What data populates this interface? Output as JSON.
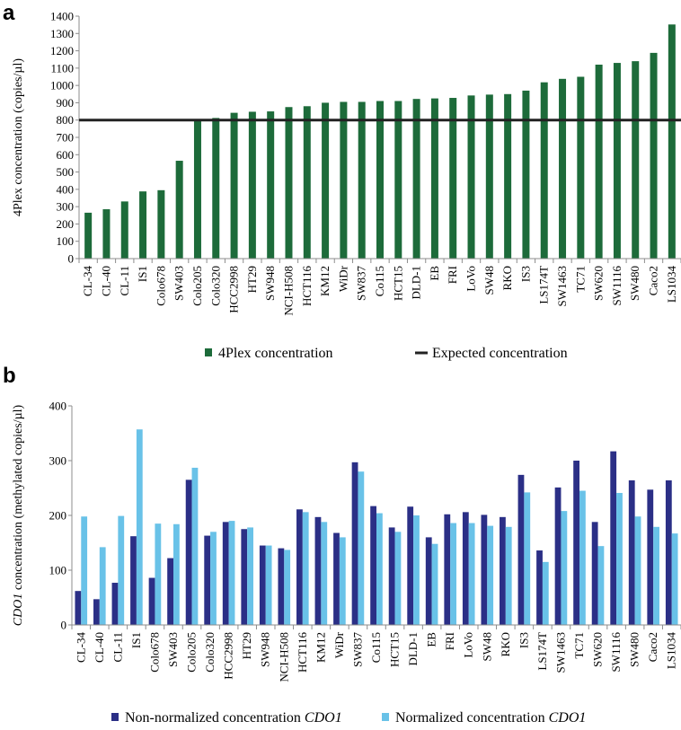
{
  "chart_data": [
    {
      "panel": "a",
      "type": "bar",
      "ylabel": "4Plex concentration (copies/µl)",
      "ylim": [
        0,
        1400
      ],
      "yticks": [
        0,
        100,
        200,
        300,
        400,
        500,
        600,
        700,
        800,
        900,
        1000,
        1100,
        1200,
        1300,
        1400
      ],
      "grid": false,
      "legend_position": "bottom",
      "categories": [
        "CL-34",
        "CL-40",
        "CL-11",
        "IS1",
        "Colo678",
        "SW403",
        "Colo205",
        "Colo320",
        "HCC2998",
        "HT29",
        "SW948",
        "NCI-H508",
        "HCT116",
        "KM12",
        "WiDr",
        "SW837",
        "Co115",
        "HCT15",
        "DLD-1",
        "EB",
        "FRI",
        "LoVo",
        "SW48",
        "RKO",
        "IS3",
        "LS174T",
        "SW1463",
        "TC71",
        "SW620",
        "SW1116",
        "SW480",
        "Caco2",
        "LS1034"
      ],
      "series": [
        {
          "name": "4Plex concentration",
          "color": "#1d6b3a",
          "values": [
            265,
            285,
            330,
            388,
            395,
            565,
            800,
            812,
            842,
            848,
            850,
            875,
            880,
            900,
            905,
            905,
            910,
            910,
            922,
            925,
            928,
            942,
            947,
            950,
            970,
            1018,
            1038,
            1050,
            1120,
            1130,
            1140,
            1188,
            1352
          ]
        }
      ],
      "reference_line": {
        "name": "Expected concentration",
        "value": 800,
        "color": "#222222"
      }
    },
    {
      "panel": "b",
      "type": "bar",
      "ylabel_parts": [
        {
          "text": "CDO1",
          "italic": true
        },
        {
          "text": " concentration (methylated copies/µl)",
          "italic": false
        }
      ],
      "ylim": [
        0,
        400
      ],
      "yticks": [
        0,
        100,
        200,
        300,
        400
      ],
      "grid": false,
      "legend_position": "bottom",
      "categories": [
        "CL-34",
        "CL-40",
        "CL-11",
        "IS1",
        "Colo678",
        "SW403",
        "Colo205",
        "Colo320",
        "HCC2998",
        "HT29",
        "SW948",
        "NCI-H508",
        "HCT116",
        "KM12",
        "WiDr",
        "SW837",
        "Co115",
        "HCT15",
        "DLD-1",
        "EB",
        "FRI",
        "LoVo",
        "SW48",
        "RKO",
        "IS3",
        "LS174T",
        "SW1463",
        "TC71",
        "SW620",
        "SW1116",
        "SW480",
        "Caco2",
        "LS1034"
      ],
      "series": [
        {
          "name_parts": [
            {
              "text": "Non-normalized concentration ",
              "italic": false
            },
            {
              "text": "CDO1",
              "italic": true
            }
          ],
          "color": "#2b2f86",
          "values": [
            62,
            47,
            77,
            162,
            86,
            122,
            265,
            163,
            188,
            175,
            145,
            140,
            211,
            197,
            168,
            297,
            217,
            178,
            216,
            160,
            202,
            206,
            201,
            197,
            274,
            136,
            251,
            300,
            188,
            317,
            264,
            247,
            264
          ]
        },
        {
          "name_parts": [
            {
              "text": "Normalized concentration ",
              "italic": false
            },
            {
              "text": "CDO1",
              "italic": true
            }
          ],
          "color": "#69c2e8",
          "values": [
            198,
            142,
            199,
            357,
            185,
            184,
            287,
            170,
            190,
            178,
            145,
            137,
            206,
            188,
            160,
            280,
            204,
            170,
            200,
            148,
            186,
            186,
            181,
            179,
            242,
            115,
            208,
            245,
            144,
            241,
            198,
            179,
            167
          ]
        }
      ]
    }
  ]
}
